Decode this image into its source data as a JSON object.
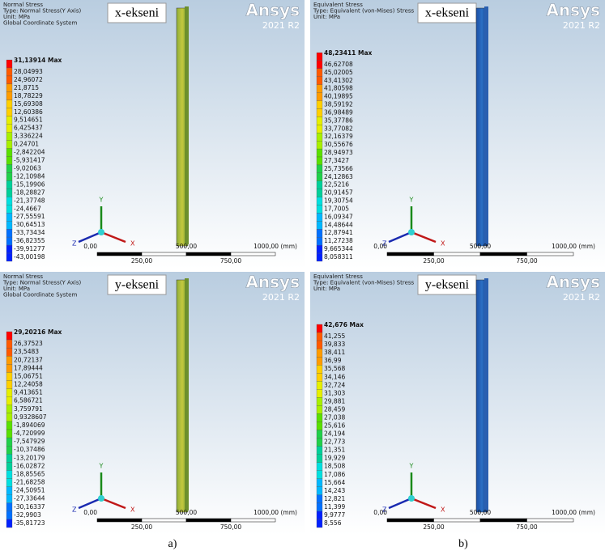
{
  "figure": {
    "panels": [
      {
        "header": [
          "Normal Stress",
          "Type: Normal Stress(Y Axis)",
          "Unit: MPa",
          "Global Coordinate System"
        ],
        "label": "x-ekseni",
        "brand": "Ansys",
        "version": "2021 R2",
        "legend_max": "31,13914 Max",
        "legend": [
          "28,04993",
          "24,96072",
          "21,8715",
          "18,78229",
          "15,69308",
          "12,60386",
          "9,514651",
          "6,425437",
          "3,336224",
          "0,24701",
          "-2,842204",
          "-5,931417",
          "-9,02063",
          "-12,10984",
          "-15,19906",
          "-18,28827",
          "-21,37748",
          "-24,4667",
          "-27,55591",
          "-30,64513",
          "-33,73434",
          "-36,82355",
          "-39,91277",
          "-43,00198"
        ],
        "scale_top": [
          "0,00",
          "500,00",
          "1000,00 (mm)"
        ],
        "scale_bottom": [
          "250,00",
          "750,00"
        ],
        "axes": [
          "Y",
          "X",
          "Z"
        ]
      },
      {
        "header": [
          "Equivalent Stress",
          "Type: Equivalent (von-Mises) Stress",
          "Unit: MPa"
        ],
        "label": "x-ekseni",
        "brand": "Ansys",
        "version": "2021 R2",
        "legend_max": "48,23411 Max",
        "legend": [
          "46,62708",
          "45,02005",
          "43,41302",
          "41,80598",
          "40,19895",
          "38,59192",
          "36,98489",
          "35,37786",
          "33,77082",
          "32,16379",
          "30,55676",
          "28,94973",
          "27,3427",
          "25,73566",
          "24,12863",
          "22,5216",
          "20,91457",
          "19,30754",
          "17,7005",
          "16,09347",
          "14,48644",
          "12,87941",
          "11,27238",
          "9,665344",
          "8,058311"
        ],
        "scale_top": [
          "0,00",
          "500,00",
          "1000,00 (mm)"
        ],
        "scale_bottom": [
          "250,00",
          "750,00"
        ],
        "axes": [
          "Y",
          "X",
          "Z"
        ]
      },
      {
        "header": [
          "Normal Stress",
          "Type: Normal Stress(Y Axis)",
          "Unit: MPa",
          "Global Coordinate System"
        ],
        "label": "y-ekseni",
        "brand": "Ansys",
        "version": "2021 R2",
        "legend_max": "29,20216 Max",
        "legend": [
          "26,37523",
          "23,5483",
          "20,72137",
          "17,89444",
          "15,06751",
          "12,24058",
          "9,413651",
          "6,586721",
          "3,759791",
          "0,9328607",
          "-1,894069",
          "-4,720999",
          "-7,547929",
          "-10,37486",
          "-13,20179",
          "-16,02872",
          "-18,85565",
          "-21,68258",
          "-24,50951",
          "-27,33644",
          "-30,16337",
          "-32,9903",
          "-35,81723"
        ],
        "scale_top": [
          "0,00",
          "500,00",
          "1000,00 (mm)"
        ],
        "scale_bottom": [
          "250,00",
          "750,00"
        ],
        "axes": [
          "Y",
          "X",
          "Z"
        ]
      },
      {
        "header": [
          "Equivalent Stress",
          "Type: Equivalent (von-Mises) Stress",
          "Unit: MPa"
        ],
        "label": "y-ekseni",
        "brand": "Ansys",
        "version": "2021 R2",
        "legend_max": "42,676 Max",
        "legend": [
          "41,255",
          "39,833",
          "38,411",
          "36,99",
          "35,568",
          "34,146",
          "32,724",
          "31,303",
          "29,881",
          "28,459",
          "27,038",
          "25,616",
          "24,194",
          "22,773",
          "21,351",
          "19,929",
          "18,508",
          "17,086",
          "15,664",
          "14,243",
          "12,821",
          "11,399",
          "9,9777",
          "8,556"
        ],
        "scale_top": [
          "0,00",
          "500,00",
          "1000,00 (mm)"
        ],
        "scale_bottom": [
          "250,00",
          "750,00"
        ],
        "axes": [
          "Y",
          "X",
          "Z"
        ]
      }
    ],
    "captions": [
      "a)",
      "b)"
    ]
  }
}
